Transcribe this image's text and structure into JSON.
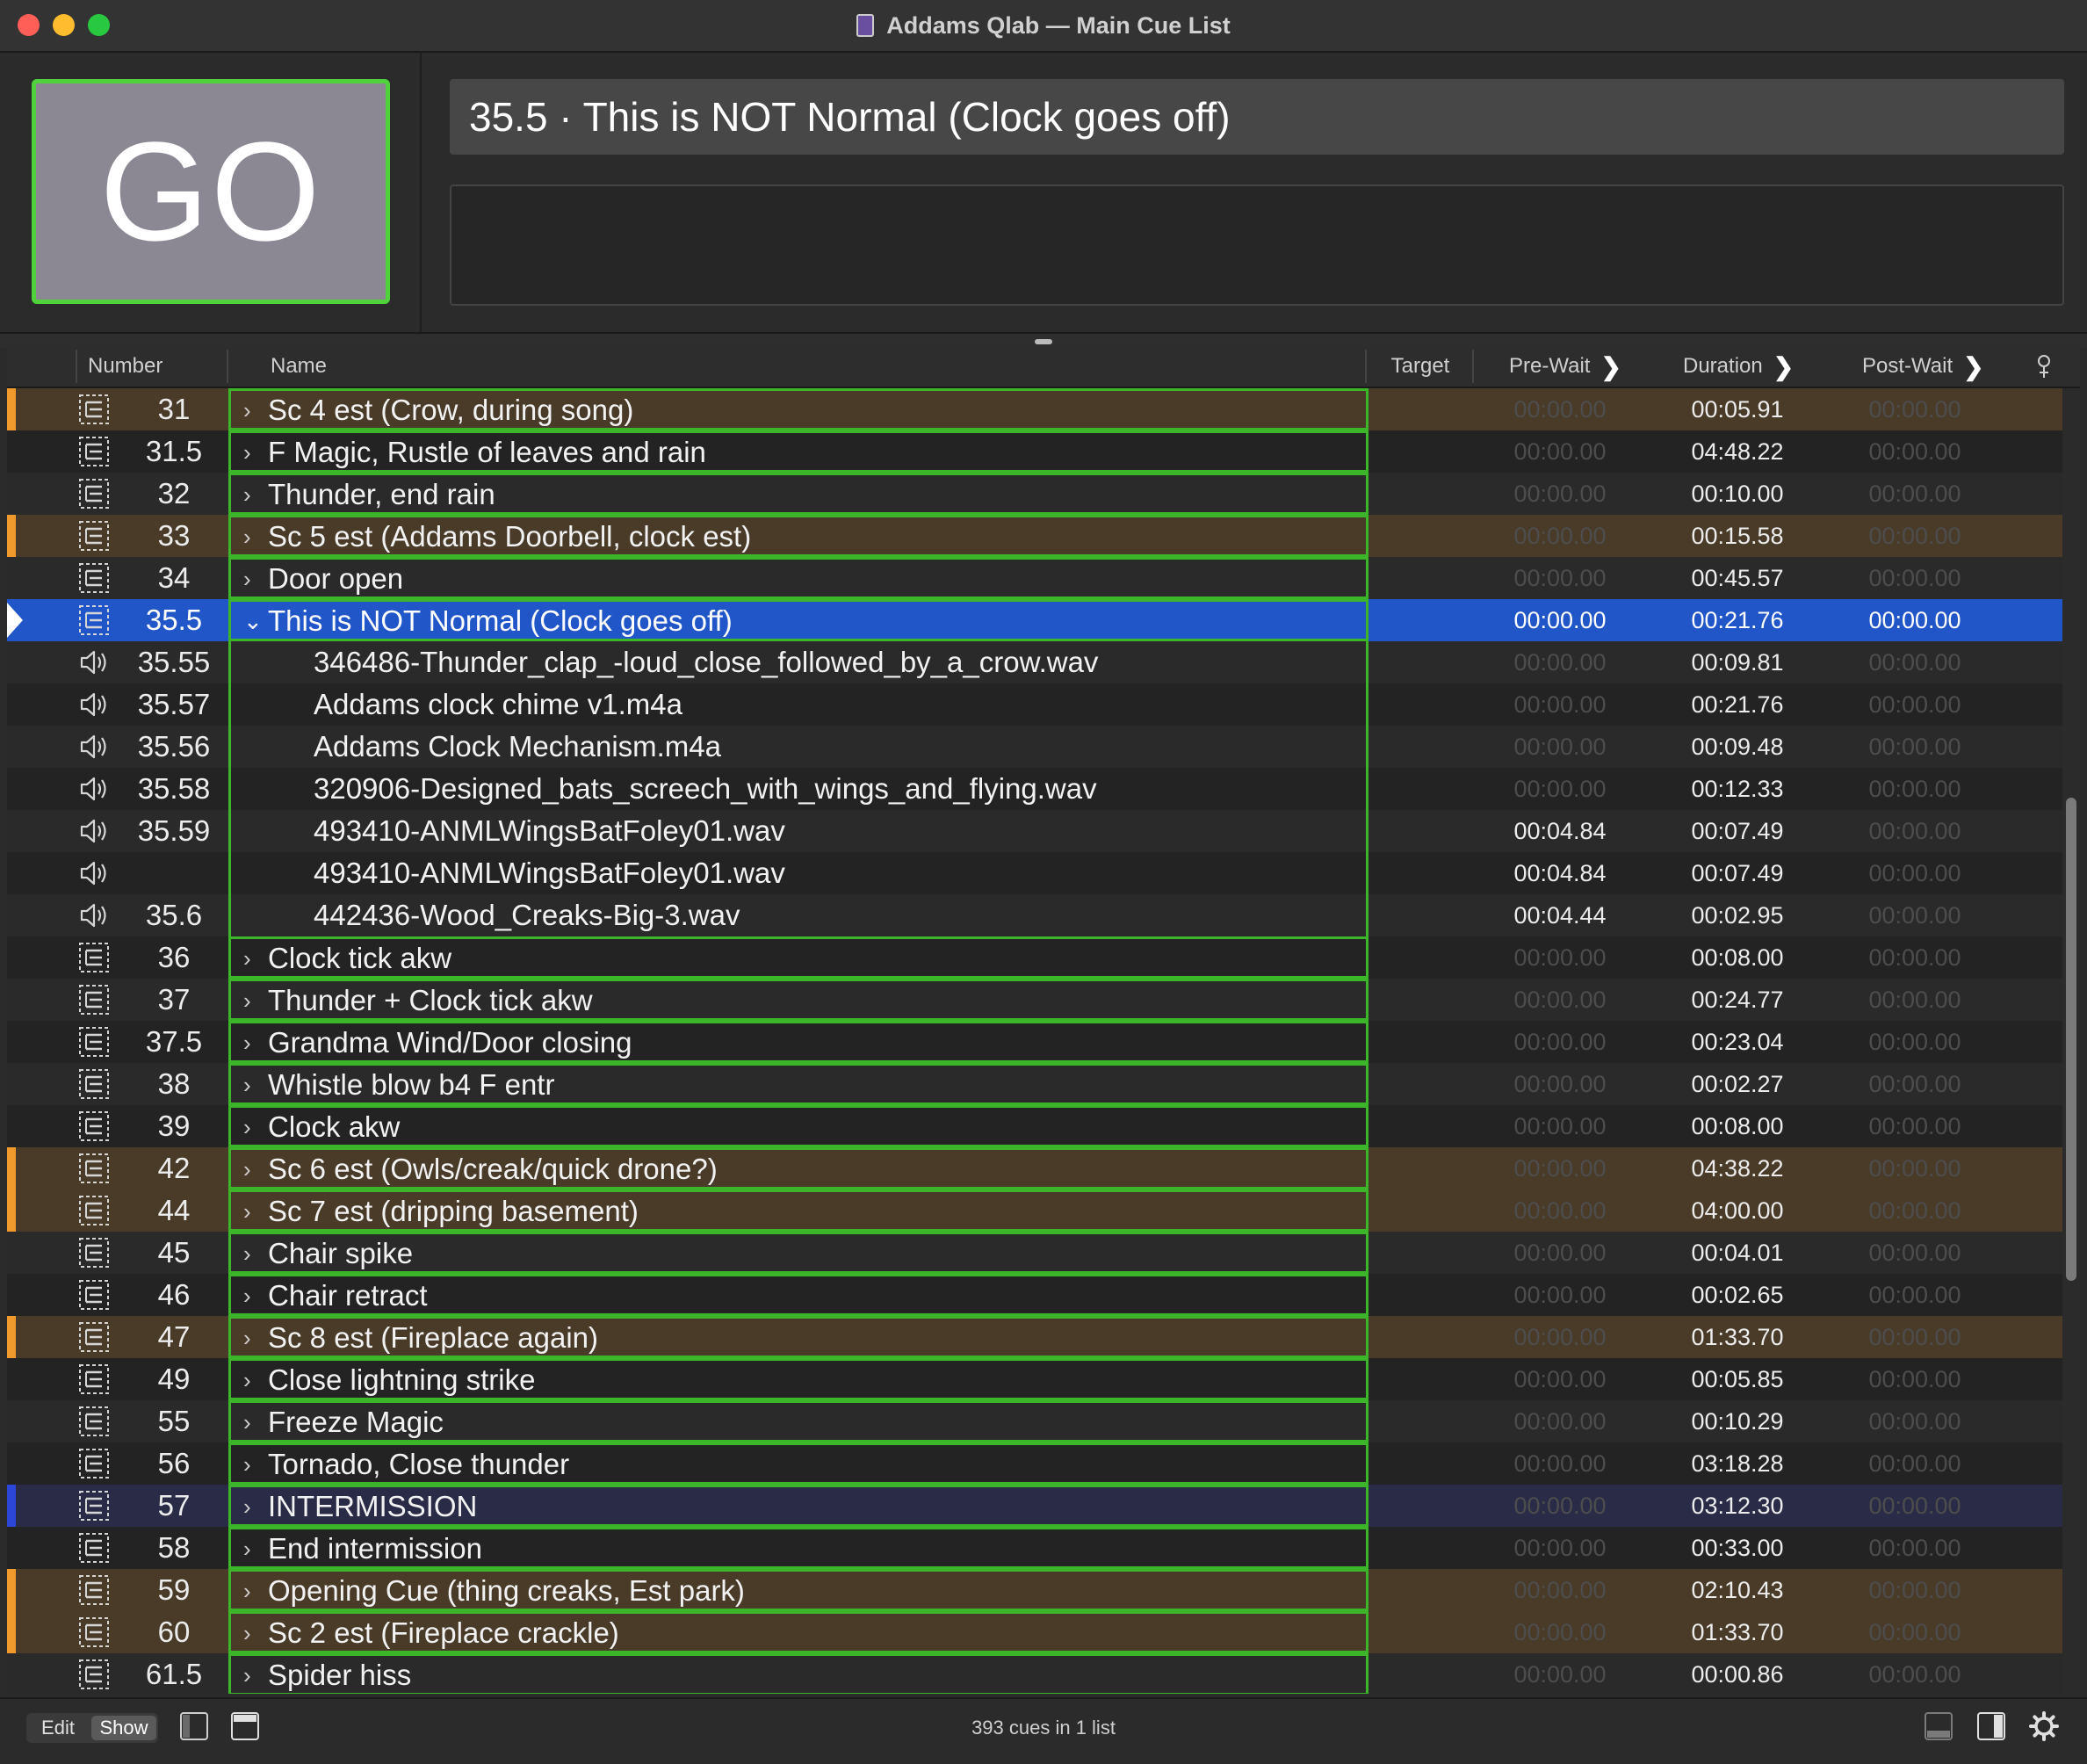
{
  "window": {
    "title": "Addams Qlab — Main Cue List"
  },
  "go": {
    "label": "GO"
  },
  "standby": {
    "title": "35.5 · This is NOT Normal (Clock goes off)",
    "notes": ""
  },
  "columns": {
    "number": "Number",
    "name": "Name",
    "target": "Target",
    "pre_wait": "Pre-Wait",
    "duration": "Duration",
    "post_wait": "Post-Wait"
  },
  "cues": [
    {
      "icon": "group-cue-icon",
      "number": "31",
      "name": "Sc 4 est (Crow, during song)",
      "pre": "00:00.00",
      "dur": "00:05.91",
      "post": "00:00.00",
      "color": "brown",
      "kind": "group"
    },
    {
      "icon": "group-cue-icon",
      "number": "31.5",
      "name": "F Magic, Rustle of leaves and rain",
      "pre": "00:00.00",
      "dur": "04:48.22",
      "post": "00:00.00",
      "color": "none",
      "kind": "group"
    },
    {
      "icon": "group-cue-icon",
      "number": "32",
      "name": "Thunder, end rain",
      "pre": "00:00.00",
      "dur": "00:10.00",
      "post": "00:00.00",
      "color": "none",
      "kind": "group"
    },
    {
      "icon": "group-cue-icon",
      "number": "33",
      "name": "Sc 5 est (Addams Doorbell, clock est)",
      "pre": "00:00.00",
      "dur": "00:15.58",
      "post": "00:00.00",
      "color": "brown",
      "kind": "group"
    },
    {
      "icon": "group-cue-icon",
      "number": "34",
      "name": "Door open",
      "pre": "00:00.00",
      "dur": "00:45.57",
      "post": "00:00.00",
      "color": "none",
      "kind": "group"
    },
    {
      "icon": "group-cue-icon",
      "number": "35.5",
      "name": "This is NOT Normal (Clock goes off)",
      "pre": "00:00.00",
      "dur": "00:21.76",
      "post": "00:00.00",
      "color": "none",
      "kind": "group",
      "selected": true,
      "expanded": true
    },
    {
      "icon": "audio-cue-icon",
      "number": "35.55",
      "name": "346486-Thunder_clap_-loud_close_followed_by_a_crow.wav",
      "pre": "00:00.00",
      "dur": "00:09.81",
      "post": "00:00.00",
      "color": "none",
      "kind": "child"
    },
    {
      "icon": "audio-cue-icon",
      "number": "35.57",
      "name": "Addams clock chime v1.m4a",
      "pre": "00:00.00",
      "dur": "00:21.76",
      "post": "00:00.00",
      "color": "none",
      "kind": "child"
    },
    {
      "icon": "audio-cue-icon",
      "number": "35.56",
      "name": "Addams Clock Mechanism.m4a",
      "pre": "00:00.00",
      "dur": "00:09.48",
      "post": "00:00.00",
      "color": "none",
      "kind": "child"
    },
    {
      "icon": "audio-cue-icon",
      "number": "35.58",
      "name": "320906-Designed_bats_screech_with_wings_and_flying.wav",
      "pre": "00:00.00",
      "dur": "00:12.33",
      "post": "00:00.00",
      "color": "none",
      "kind": "child"
    },
    {
      "icon": "audio-cue-icon",
      "number": "35.59",
      "name": "493410-ANMLWingsBatFoley01.wav",
      "pre": "00:04.84",
      "dur": "00:07.49",
      "post": "00:00.00",
      "color": "none",
      "kind": "child",
      "pre_lit": true
    },
    {
      "icon": "audio-cue-icon",
      "number": "",
      "name": "493410-ANMLWingsBatFoley01.wav",
      "pre": "00:04.84",
      "dur": "00:07.49",
      "post": "00:00.00",
      "color": "none",
      "kind": "child",
      "pre_lit": true
    },
    {
      "icon": "audio-cue-icon",
      "number": "35.6",
      "name": "442436-Wood_Creaks-Big-3.wav",
      "pre": "00:04.44",
      "dur": "00:02.95",
      "post": "00:00.00",
      "color": "none",
      "kind": "child",
      "pre_lit": true
    },
    {
      "icon": "group-cue-icon",
      "number": "36",
      "name": "Clock tick akw",
      "pre": "00:00.00",
      "dur": "00:08.00",
      "post": "00:00.00",
      "color": "none",
      "kind": "group"
    },
    {
      "icon": "group-cue-icon",
      "number": "37",
      "name": "Thunder + Clock tick akw",
      "pre": "00:00.00",
      "dur": "00:24.77",
      "post": "00:00.00",
      "color": "none",
      "kind": "group"
    },
    {
      "icon": "group-cue-icon",
      "number": "37.5",
      "name": "Grandma Wind/Door closing",
      "pre": "00:00.00",
      "dur": "00:23.04",
      "post": "00:00.00",
      "color": "none",
      "kind": "group"
    },
    {
      "icon": "group-cue-icon",
      "number": "38",
      "name": "Whistle blow b4 F entr",
      "pre": "00:00.00",
      "dur": "00:02.27",
      "post": "00:00.00",
      "color": "none",
      "kind": "group"
    },
    {
      "icon": "group-cue-icon",
      "number": "39",
      "name": "Clock akw",
      "pre": "00:00.00",
      "dur": "00:08.00",
      "post": "00:00.00",
      "color": "none",
      "kind": "group"
    },
    {
      "icon": "group-cue-icon",
      "number": "42",
      "name": "Sc 6 est (Owls/creak/quick drone?)",
      "pre": "00:00.00",
      "dur": "04:38.22",
      "post": "00:00.00",
      "color": "brown",
      "kind": "group"
    },
    {
      "icon": "group-cue-icon",
      "number": "44",
      "name": "Sc 7 est (dripping basement)",
      "pre": "00:00.00",
      "dur": "04:00.00",
      "post": "00:00.00",
      "color": "brown",
      "kind": "group"
    },
    {
      "icon": "group-cue-icon",
      "number": "45",
      "name": "Chair spike",
      "pre": "00:00.00",
      "dur": "00:04.01",
      "post": "00:00.00",
      "color": "none",
      "kind": "group"
    },
    {
      "icon": "group-cue-icon",
      "number": "46",
      "name": "Chair retract",
      "pre": "00:00.00",
      "dur": "00:02.65",
      "post": "00:00.00",
      "color": "none",
      "kind": "group"
    },
    {
      "icon": "group-cue-icon",
      "number": "47",
      "name": "Sc 8 est (Fireplace again)",
      "pre": "00:00.00",
      "dur": "01:33.70",
      "post": "00:00.00",
      "color": "brown",
      "kind": "group"
    },
    {
      "icon": "group-cue-icon",
      "number": "49",
      "name": "Close lightning strike",
      "pre": "00:00.00",
      "dur": "00:05.85",
      "post": "00:00.00",
      "color": "none",
      "kind": "group"
    },
    {
      "icon": "group-cue-icon",
      "number": "55",
      "name": "Freeze Magic",
      "pre": "00:00.00",
      "dur": "00:10.29",
      "post": "00:00.00",
      "color": "none",
      "kind": "group"
    },
    {
      "icon": "group-cue-icon",
      "number": "56",
      "name": "Tornado, Close thunder",
      "pre": "00:00.00",
      "dur": "03:18.28",
      "post": "00:00.00",
      "color": "none",
      "kind": "group"
    },
    {
      "icon": "group-cue-icon",
      "number": "57",
      "name": "INTERMISSION",
      "pre": "00:00.00",
      "dur": "03:12.30",
      "post": "00:00.00",
      "color": "blue",
      "kind": "group"
    },
    {
      "icon": "group-cue-icon",
      "number": "58",
      "name": "End intermission",
      "pre": "00:00.00",
      "dur": "00:33.00",
      "post": "00:00.00",
      "color": "none",
      "kind": "group"
    },
    {
      "icon": "group-cue-icon",
      "number": "59",
      "name": "Opening Cue (thing creaks, Est park)",
      "pre": "00:00.00",
      "dur": "02:10.43",
      "post": "00:00.00",
      "color": "brown",
      "kind": "group"
    },
    {
      "icon": "group-cue-icon",
      "number": "60",
      "name": "Sc 2 est (Fireplace crackle)",
      "pre": "00:00.00",
      "dur": "01:33.70",
      "post": "00:00.00",
      "color": "brown",
      "kind": "group"
    },
    {
      "icon": "group-cue-icon",
      "number": "61.5",
      "name": "Spider hiss",
      "pre": "00:00.00",
      "dur": "00:00.86",
      "post": "00:00.00",
      "color": "none",
      "kind": "group"
    }
  ],
  "footer": {
    "edit_label": "Edit",
    "show_label": "Show",
    "status": "393 cues in 1 list"
  },
  "colors": {
    "go_border": "#4fd23b",
    "selected_row": "#2156c9",
    "brown_row": "#4a3b29",
    "brown_marker": "#f09a2e",
    "blue_marker": "#2c46d8",
    "group_outline": "#3cb52b"
  }
}
